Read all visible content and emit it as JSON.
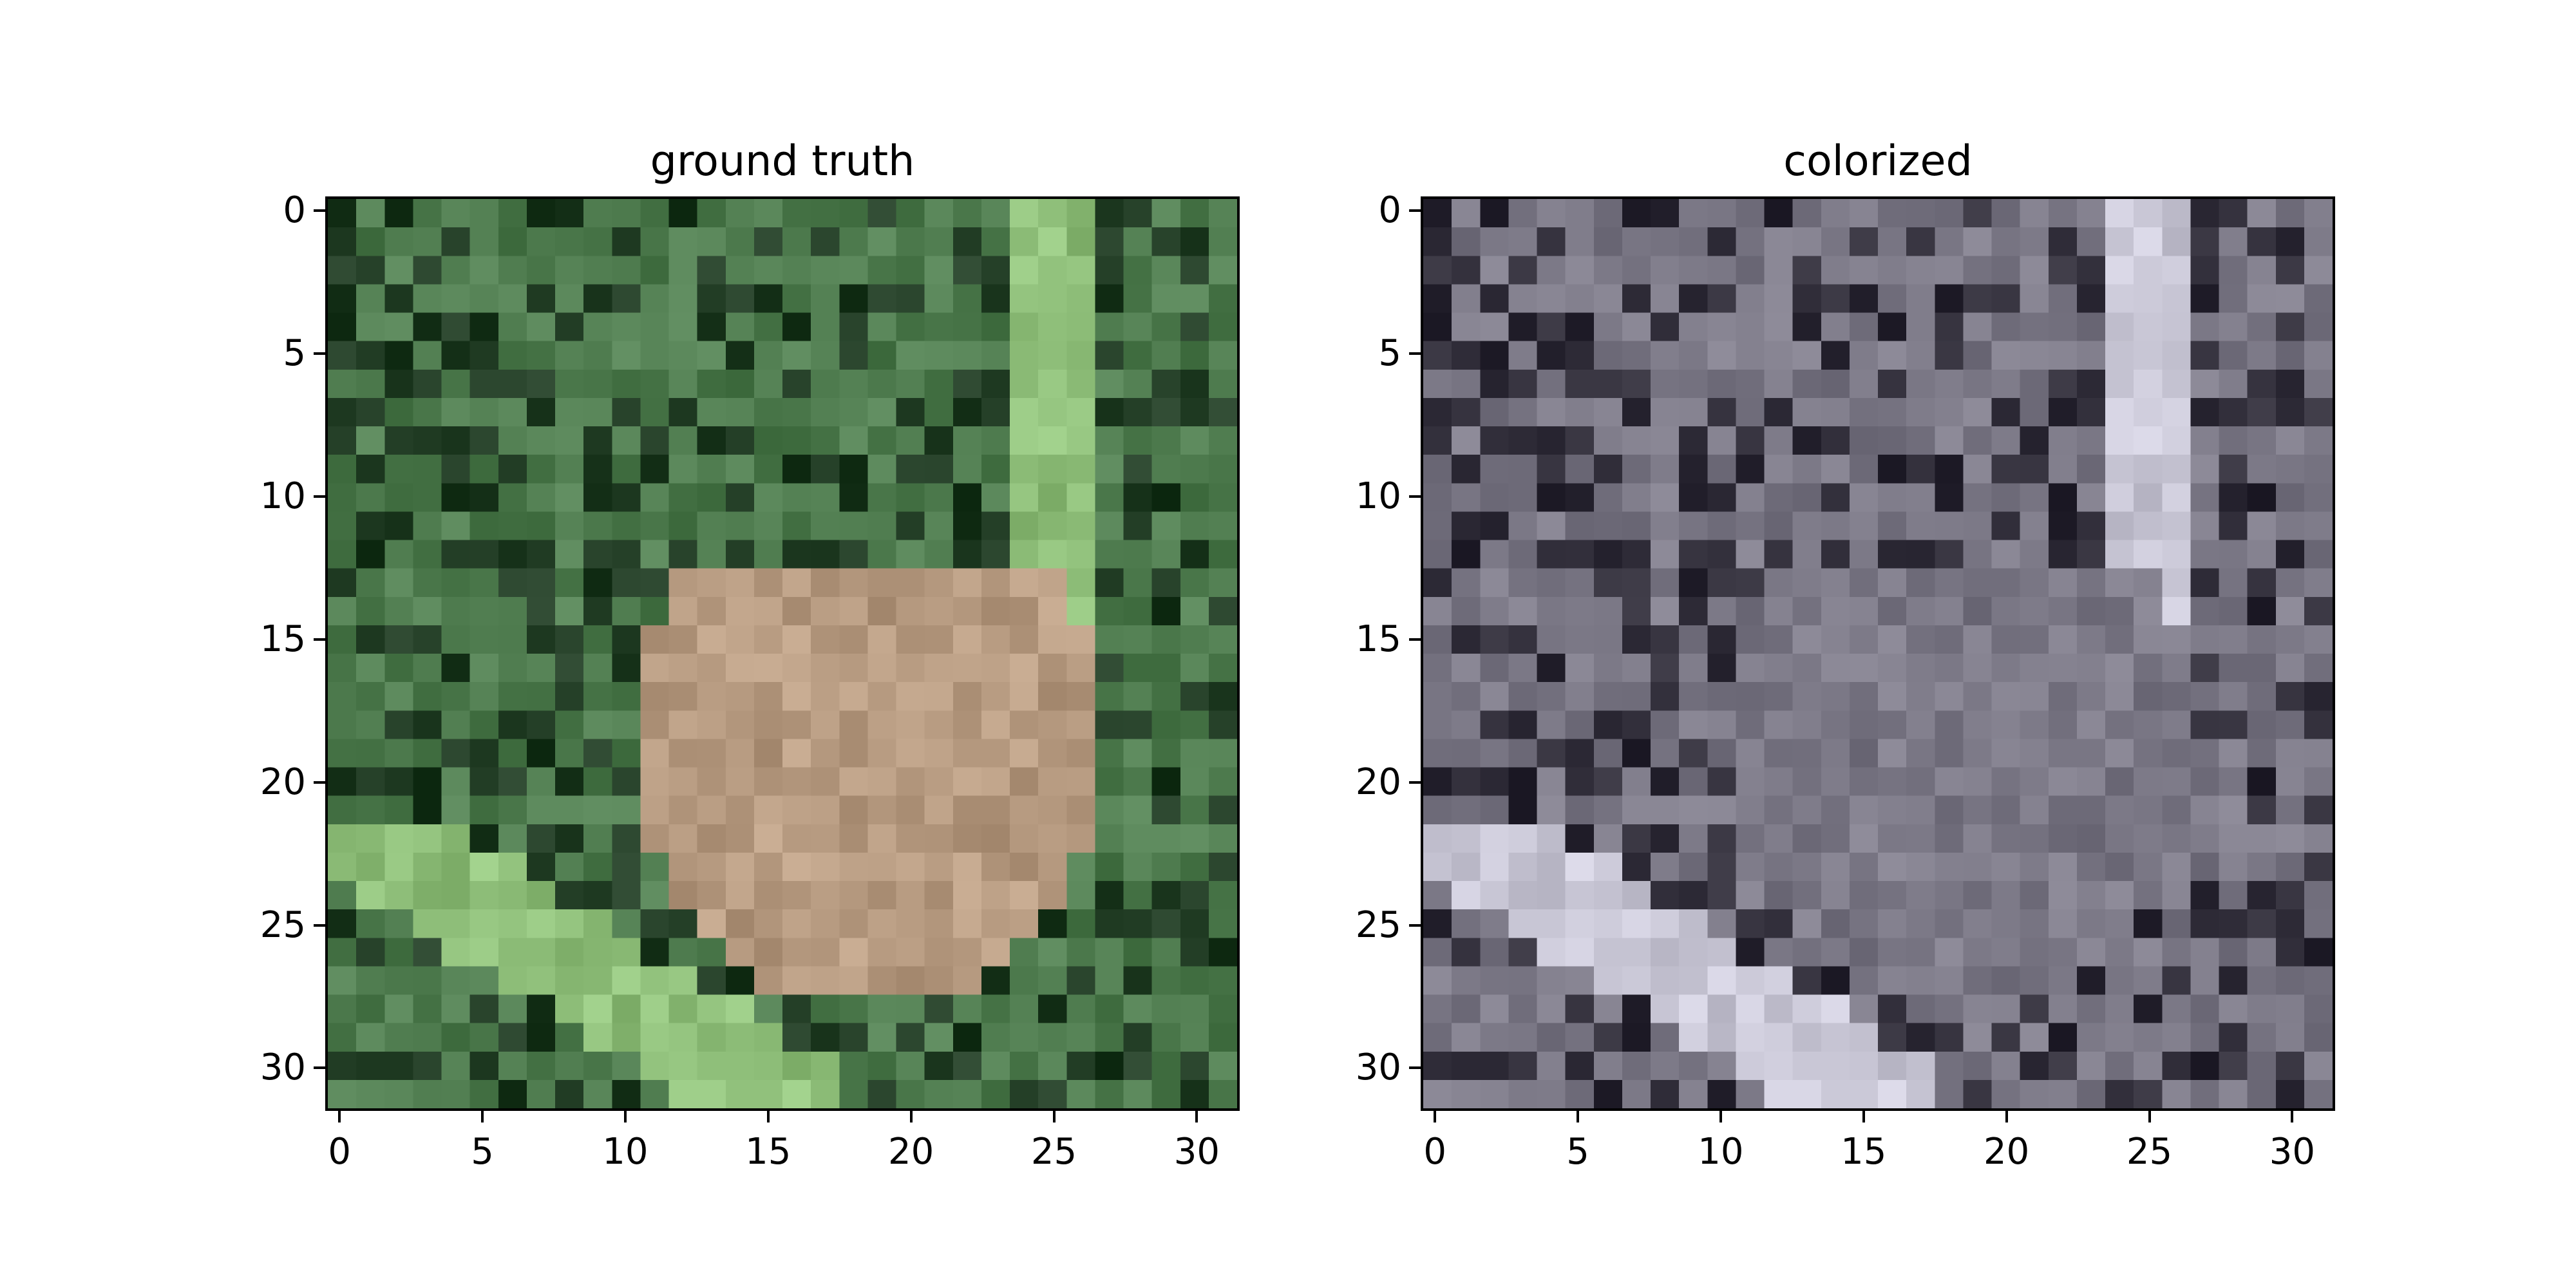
{
  "figure": {
    "panels": [
      {
        "title": "ground truth",
        "image_description_tag": "frog-in-grass-color",
        "x_ticks": [
          "0",
          "5",
          "10",
          "15",
          "20",
          "25",
          "30"
        ],
        "y_ticks": [
          "0",
          "5",
          "10",
          "15",
          "20",
          "25",
          "30"
        ]
      },
      {
        "title": "colorized",
        "image_description_tag": "frog-in-grass-grayscale-colorized",
        "x_ticks": [
          "0",
          "5",
          "10",
          "15",
          "20",
          "25",
          "30"
        ],
        "y_ticks": [
          "0",
          "5",
          "10",
          "15",
          "20",
          "25",
          "30"
        ]
      }
    ],
    "colors": {
      "gt_grass_dark": "#1f3a22",
      "gt_grass_mid": "#4f7c4f",
      "gt_grass_light": "#8fbf7a",
      "gt_frog": "#b69a80",
      "col_dark": "#2d2a36",
      "col_mid": "#7b7886",
      "col_light": "#c9c7d6"
    }
  }
}
